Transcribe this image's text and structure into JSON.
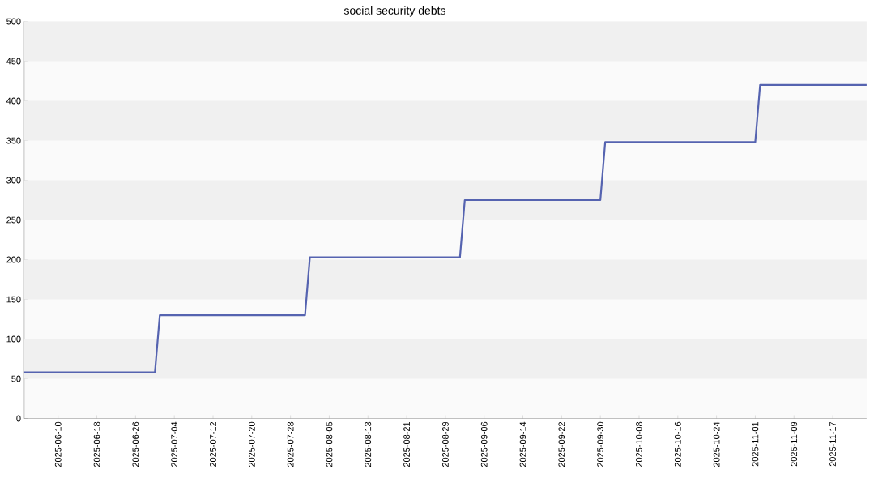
{
  "chart_data": {
    "type": "line",
    "title": "social security debts",
    "x": [
      "2025-06-03",
      "2025-06-30",
      "2025-07-01",
      "2025-07-31",
      "2025-08-01",
      "2025-09-01",
      "2025-09-02",
      "2025-09-30",
      "2025-10-01",
      "2025-11-01",
      "2025-11-02",
      "2025-11-24"
    ],
    "series": [
      {
        "color": "#5563b0",
        "values": [
          58,
          58,
          130,
          130,
          203,
          203,
          275,
          275,
          348,
          348,
          420,
          420
        ]
      }
    ],
    "xlim": [
      "2025-06-03",
      "2025-11-24"
    ],
    "xticks": [
      "2025-06-10",
      "2025-06-18",
      "2025-06-26",
      "2025-07-04",
      "2025-07-12",
      "2025-07-20",
      "2025-07-28",
      "2025-08-05",
      "2025-08-13",
      "2025-08-21",
      "2025-08-29",
      "2025-09-06",
      "2025-09-14",
      "2025-09-22",
      "2025-09-30",
      "2025-10-08",
      "2025-10-16",
      "2025-10-24",
      "2025-11-01",
      "2025-11-09",
      "2025-11-17"
    ],
    "ylim": [
      0,
      500
    ],
    "yticks": [
      0,
      50,
      100,
      150,
      200,
      250,
      300,
      350,
      400,
      450,
      500
    ],
    "marker": "none",
    "line_style": "solid"
  }
}
